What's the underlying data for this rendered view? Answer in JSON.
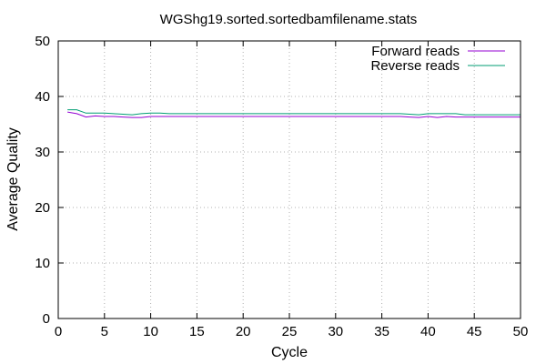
{
  "chart_data": {
    "type": "line",
    "title": "WGShg19.sorted.sortedbamfilename.stats",
    "xlabel": "Cycle",
    "ylabel": "Average Quality",
    "xlim": [
      0,
      50
    ],
    "ylim": [
      0,
      50
    ],
    "xticks": [
      0,
      5,
      10,
      15,
      20,
      25,
      30,
      35,
      40,
      45,
      50
    ],
    "yticks": [
      0,
      10,
      20,
      30,
      40,
      50
    ],
    "grid": true,
    "legend_position": "top-right",
    "x": [
      1,
      2,
      3,
      4,
      5,
      6,
      7,
      8,
      9,
      10,
      11,
      12,
      13,
      14,
      15,
      16,
      17,
      18,
      19,
      20,
      21,
      22,
      23,
      24,
      25,
      26,
      27,
      28,
      29,
      30,
      31,
      32,
      33,
      34,
      35,
      36,
      37,
      38,
      39,
      40,
      41,
      42,
      43,
      44,
      45,
      46,
      47,
      48,
      49,
      50
    ],
    "series": [
      {
        "name": "Forward reads",
        "color": "#9400d3",
        "values": [
          37.2,
          36.9,
          36.3,
          36.5,
          36.4,
          36.4,
          36.3,
          36.2,
          36.2,
          36.4,
          36.4,
          36.4,
          36.4,
          36.4,
          36.4,
          36.4,
          36.4,
          36.4,
          36.4,
          36.4,
          36.4,
          36.4,
          36.4,
          36.4,
          36.4,
          36.4,
          36.4,
          36.4,
          36.4,
          36.4,
          36.4,
          36.4,
          36.4,
          36.4,
          36.4,
          36.4,
          36.4,
          36.3,
          36.2,
          36.4,
          36.2,
          36.4,
          36.3,
          36.3,
          36.3,
          36.3,
          36.3,
          36.3,
          36.3,
          36.3
        ]
      },
      {
        "name": "Reverse reads",
        "color": "#009e73",
        "values": [
          37.6,
          37.6,
          37.0,
          37.0,
          37.0,
          36.9,
          36.8,
          36.7,
          36.9,
          37.0,
          37.0,
          36.9,
          36.9,
          36.9,
          36.9,
          36.9,
          36.9,
          36.9,
          36.9,
          36.9,
          36.9,
          36.9,
          36.9,
          36.9,
          36.9,
          36.9,
          36.9,
          36.9,
          36.9,
          36.9,
          36.9,
          36.9,
          36.9,
          36.9,
          36.9,
          36.9,
          36.9,
          36.8,
          36.7,
          36.9,
          36.9,
          36.9,
          36.9,
          36.7,
          36.7,
          36.7,
          36.7,
          36.7,
          36.7,
          36.7
        ]
      }
    ]
  }
}
